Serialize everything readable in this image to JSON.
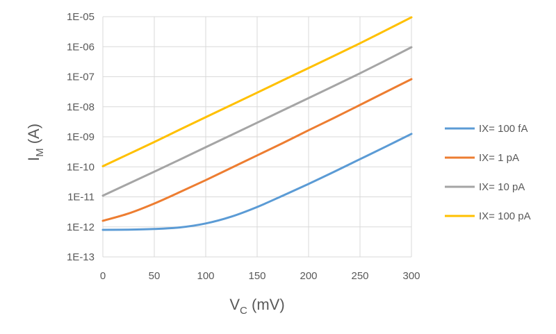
{
  "chart_data": {
    "type": "line",
    "title": "",
    "xlabel": {
      "main": "V",
      "sub": "C",
      "unit": " (mV)"
    },
    "ylabel": {
      "main": "I",
      "sub": "M",
      "unit": " (A)"
    },
    "xlim": [
      0,
      300
    ],
    "ylim_exponents": [
      -13,
      -5
    ],
    "y_scale": "log",
    "grid": true,
    "legend_position": "right",
    "x_ticks": [
      "0",
      "50",
      "100",
      "150",
      "200",
      "250",
      "300"
    ],
    "y_ticks": [
      "1E-13",
      "1E-12",
      "1E-11",
      "1E-10",
      "1E-09",
      "1E-08",
      "1E-07",
      "1E-06",
      "1E-05"
    ],
    "x": [
      0,
      25,
      50,
      75,
      100,
      125,
      150,
      175,
      200,
      225,
      250,
      275,
      300
    ],
    "series": [
      {
        "name": "IX= 100 fA",
        "color": "#5b9bd5",
        "values": [
          8e-13,
          8.1e-13,
          8.5e-13,
          9.6e-13,
          1.3e-12,
          2.2e-12,
          4.6e-12,
          1.1e-11,
          2.7e-11,
          6.9e-11,
          1.8e-10,
          4.7e-10,
          1.25e-09
        ]
      },
      {
        "name": "IX= 1 pA",
        "color": "#ed7d31",
        "values": [
          1.6e-12,
          2.8e-12,
          6e-12,
          1.45e-11,
          3.6e-11,
          9.3e-11,
          2.4e-10,
          6.2e-10,
          1.65e-09,
          4.3e-09,
          1.15e-08,
          3.1e-08,
          8.3e-08
        ]
      },
      {
        "name": "IX= 10 pA",
        "color": "#a5a5a5",
        "values": [
          1.1e-11,
          2.75e-11,
          6.9e-11,
          1.75e-10,
          4.5e-10,
          1.15e-09,
          2.95e-09,
          7.6e-09,
          1.95e-08,
          5e-08,
          1.3e-07,
          3.5e-07,
          9.6e-07
        ]
      },
      {
        "name": "IX= 100 pA",
        "color": "#ffc000",
        "values": [
          1.05e-10,
          2.65e-10,
          6.7e-10,
          1.75e-09,
          4.5e-09,
          1.15e-08,
          2.95e-08,
          7.6e-08,
          1.95e-07,
          5e-07,
          1.3e-06,
          3.5e-06,
          9.5e-06
        ]
      }
    ]
  }
}
